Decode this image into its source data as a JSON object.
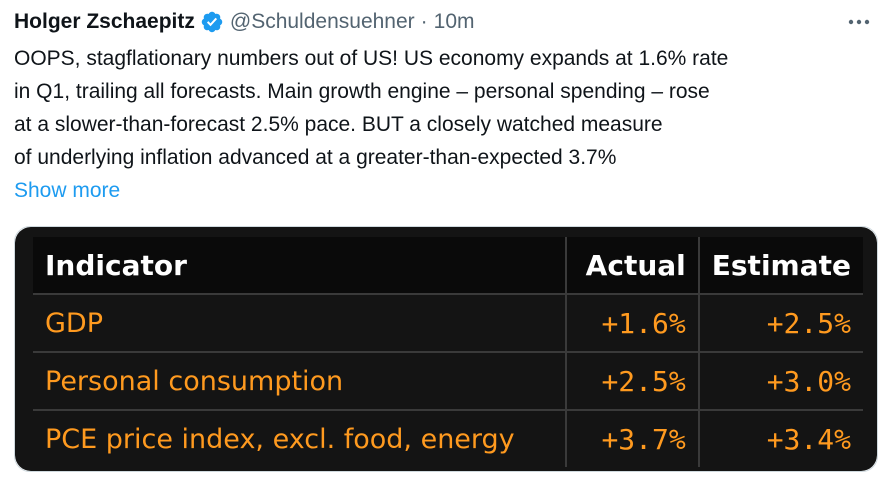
{
  "tweet": {
    "author_name": "Holger Zschaepitz",
    "handle": "@Schuldensuehner",
    "separator": "·",
    "time": "10m",
    "verified_icon": "verified-badge-icon",
    "more_icon": "more-horizontal-icon",
    "text_lines": [
      "OOPS, stagflationary numbers out of US! US economy expands at 1.6% rate",
      "in Q1, trailing all forecasts. Main growth engine – personal spending – rose",
      "at a slower-than-forecast 2.5% pace. BUT a closely watched measure",
      "of underlying inflation advanced at a greater-than-expected 3.7%"
    ],
    "show_more": "Show more"
  },
  "table": {
    "headers": {
      "indicator": "Indicator",
      "actual": "Actual",
      "estimate": "Estimate"
    },
    "rows": [
      {
        "indicator": "GDP",
        "actual": "+1.6%",
        "estimate": "+2.5%"
      },
      {
        "indicator": "Personal consumption",
        "actual": "+2.5%",
        "estimate": "+3.0%"
      },
      {
        "indicator": "PCE price index, excl. food, energy",
        "actual": "+3.7%",
        "estimate": "+3.4%"
      }
    ]
  },
  "colors": {
    "link": "#1d9bf0",
    "verified": "#1d9bf0",
    "value_orange": "#ff9a1f",
    "table_bg": "#141414"
  }
}
